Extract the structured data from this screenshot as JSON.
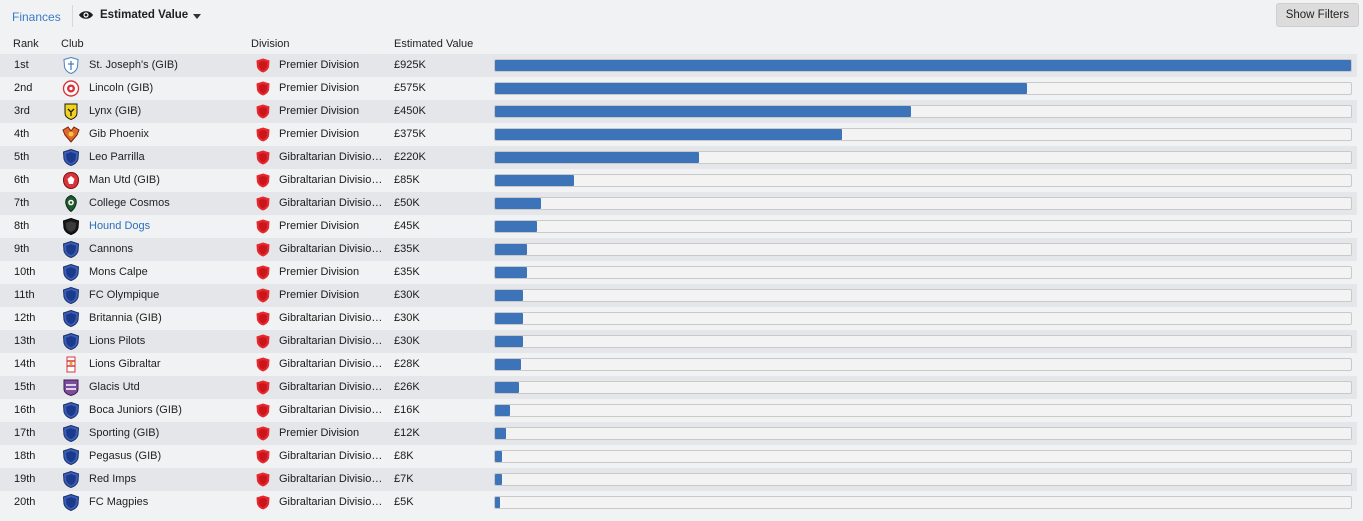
{
  "header": {
    "breadcrumb": "Finances",
    "view_label": "Estimated Value",
    "show_filters_label": "Show Filters"
  },
  "columns": {
    "rank": "Rank",
    "club": "Club",
    "division": "Division",
    "value": "Estimated Value"
  },
  "colors": {
    "accent": "#3a7bc8",
    "bar": "#3d73b8",
    "division_crest": "#e8272c"
  },
  "rows": [
    {
      "rank": "1st",
      "club": "St. Joseph's (GIB)",
      "division": "Premier Division",
      "value": "£925K",
      "value_k": 925,
      "crest": "st-josephs-crest"
    },
    {
      "rank": "2nd",
      "club": "Lincoln (GIB)",
      "division": "Premier Division",
      "value": "£575K",
      "value_k": 575,
      "crest": "lincoln-crest"
    },
    {
      "rank": "3rd",
      "club": "Lynx (GIB)",
      "division": "Premier Division",
      "value": "£450K",
      "value_k": 450,
      "crest": "lynx-crest"
    },
    {
      "rank": "4th",
      "club": "Gib Phoenix",
      "division": "Premier Division",
      "value": "£375K",
      "value_k": 375,
      "crest": "gib-phoenix-crest"
    },
    {
      "rank": "5th",
      "club": "Leo Parrilla",
      "division": "Gibraltarian Division Two",
      "value": "£220K",
      "value_k": 220,
      "crest": "default-crest"
    },
    {
      "rank": "6th",
      "club": "Man Utd (GIB)",
      "division": "Gibraltarian Division Two",
      "value": "£85K",
      "value_k": 85,
      "crest": "man-utd-crest"
    },
    {
      "rank": "7th",
      "club": "College Cosmos",
      "division": "Gibraltarian Division Two",
      "value": "£50K",
      "value_k": 50,
      "crest": "college-cosmos-crest"
    },
    {
      "rank": "8th",
      "club": "Hound Dogs",
      "division": "Premier Division",
      "value": "£45K",
      "value_k": 45,
      "crest": "hound-dogs-crest",
      "link": true
    },
    {
      "rank": "9th",
      "club": "Cannons",
      "division": "Gibraltarian Division Two",
      "value": "£35K",
      "value_k": 35,
      "crest": "default-crest"
    },
    {
      "rank": "10th",
      "club": "Mons Calpe",
      "division": "Premier Division",
      "value": "£35K",
      "value_k": 35,
      "crest": "default-crest"
    },
    {
      "rank": "11th",
      "club": "FC Olympique",
      "division": "Premier Division",
      "value": "£30K",
      "value_k": 30,
      "crest": "default-crest"
    },
    {
      "rank": "12th",
      "club": "Britannia (GIB)",
      "division": "Gibraltarian Division Two",
      "value": "£30K",
      "value_k": 30,
      "crest": "default-crest"
    },
    {
      "rank": "13th",
      "club": "Lions Pilots",
      "division": "Gibraltarian Division Two",
      "value": "£30K",
      "value_k": 30,
      "crest": "default-crest"
    },
    {
      "rank": "14th",
      "club": "Lions Gibraltar",
      "division": "Gibraltarian Division Two",
      "value": "£28K",
      "value_k": 28,
      "crest": "lions-gibraltar-crest"
    },
    {
      "rank": "15th",
      "club": "Glacis Utd",
      "division": "Gibraltarian Division Two",
      "value": "£26K",
      "value_k": 26,
      "crest": "glacis-crest"
    },
    {
      "rank": "16th",
      "club": "Boca Juniors (GIB)",
      "division": "Gibraltarian Division Two",
      "value": "£16K",
      "value_k": 16,
      "crest": "default-crest"
    },
    {
      "rank": "17th",
      "club": "Sporting (GIB)",
      "division": "Premier Division",
      "value": "£12K",
      "value_k": 12,
      "crest": "default-crest"
    },
    {
      "rank": "18th",
      "club": "Pegasus (GIB)",
      "division": "Gibraltarian Division Two",
      "value": "£8K",
      "value_k": 8,
      "crest": "default-crest"
    },
    {
      "rank": "19th",
      "club": "Red Imps",
      "division": "Gibraltarian Division Two",
      "value": "£7K",
      "value_k": 7,
      "crest": "default-crest"
    },
    {
      "rank": "20th",
      "club": "FC Magpies",
      "division": "Gibraltarian Division Two",
      "value": "£5K",
      "value_k": 5,
      "crest": "default-crest"
    }
  ],
  "max_value_k": 925
}
